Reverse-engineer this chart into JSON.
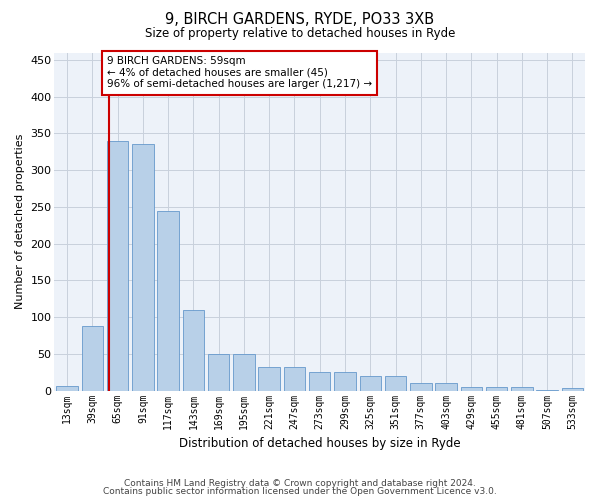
{
  "title": "9, BIRCH GARDENS, RYDE, PO33 3XB",
  "subtitle": "Size of property relative to detached houses in Ryde",
  "xlabel": "Distribution of detached houses by size in Ryde",
  "ylabel": "Number of detached properties",
  "bar_values": [
    6,
    88,
    340,
    335,
    245,
    110,
    50,
    50,
    32,
    32,
    25,
    25,
    20,
    20,
    10,
    10,
    5,
    5,
    5,
    1,
    3
  ],
  "bar_labels": [
    "13sqm",
    "39sqm",
    "65sqm",
    "91sqm",
    "117sqm",
    "143sqm",
    "169sqm",
    "195sqm",
    "221sqm",
    "247sqm",
    "273sqm",
    "299sqm",
    "325sqm",
    "351sqm",
    "377sqm",
    "403sqm",
    "429sqm",
    "455sqm",
    "481sqm",
    "507sqm",
    "533sqm"
  ],
  "bar_color": "#b8d0e8",
  "bar_edge_color": "#6699cc",
  "vline_x_index": 2,
  "vline_color": "#cc0000",
  "annotation_text": "9 BIRCH GARDENS: 59sqm\n← 4% of detached houses are smaller (45)\n96% of semi-detached houses are larger (1,217) →",
  "annotation_box_facecolor": "white",
  "annotation_box_edgecolor": "#cc0000",
  "ylim": [
    0,
    460
  ],
  "yticks": [
    0,
    50,
    100,
    150,
    200,
    250,
    300,
    350,
    400,
    450
  ],
  "footer_line1": "Contains HM Land Registry data © Crown copyright and database right 2024.",
  "footer_line2": "Contains public sector information licensed under the Open Government Licence v3.0.",
  "background_color": "#edf2f9",
  "grid_color": "#c8d0dc"
}
